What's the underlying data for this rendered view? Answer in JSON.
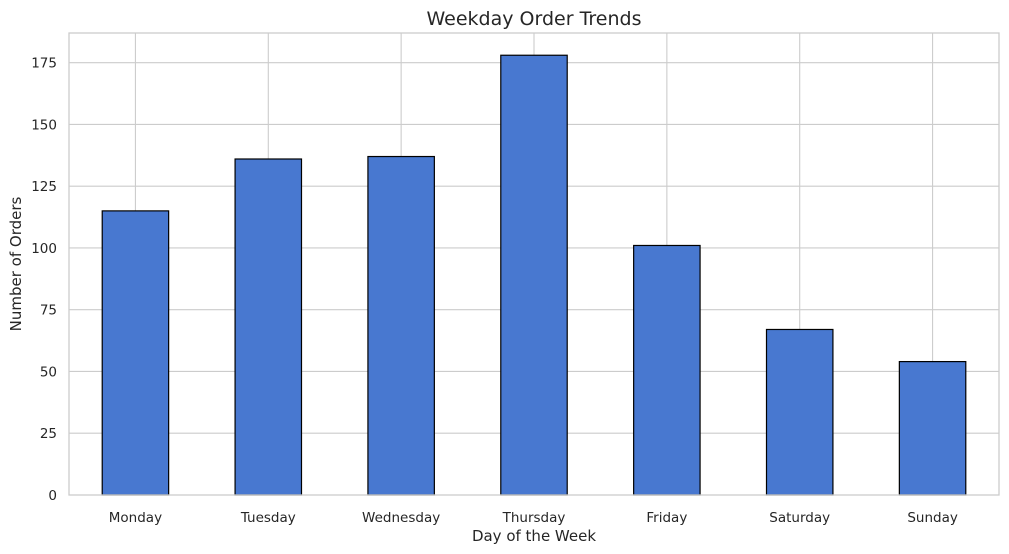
{
  "chart_data": {
    "type": "bar",
    "title": "Weekday Order Trends",
    "xlabel": "Day of the Week",
    "ylabel": "Number of Orders",
    "categories": [
      "Monday",
      "Tuesday",
      "Wednesday",
      "Thursday",
      "Friday",
      "Saturday",
      "Sunday"
    ],
    "values": [
      115,
      136,
      137,
      178,
      101,
      67,
      54
    ],
    "yticks": [
      0,
      25,
      50,
      75,
      100,
      125,
      150,
      175
    ],
    "ylim": [
      0,
      187
    ],
    "grid": true,
    "bar_color": "#4878d0",
    "edge_color": "#000000",
    "grid_color": "#cccccc"
  }
}
